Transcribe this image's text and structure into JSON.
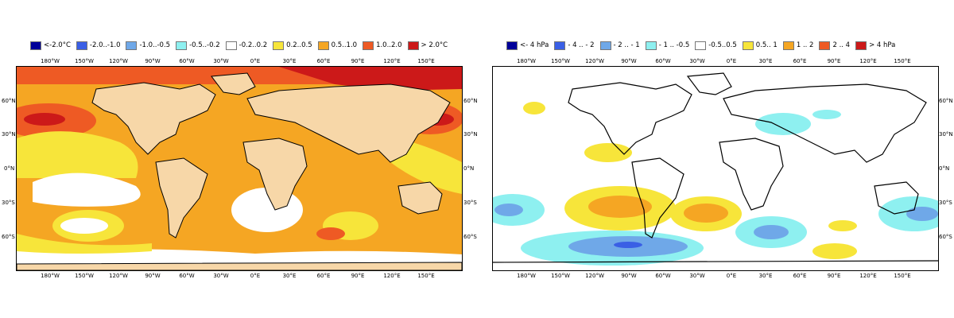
{
  "left_map": {
    "legend": [
      {
        "label": "<-2.0°C",
        "color": "#000099"
      },
      {
        "label": "-2.0..-1.0",
        "color": "#3a5fe5"
      },
      {
        "label": "-1.0..-0.5",
        "color": "#6fa8e8"
      },
      {
        "label": "-0.5..-0.2",
        "color": "#8ef0f0"
      },
      {
        "label": "-0.2..0.2",
        "color": "#ffffff"
      },
      {
        "label": "0.2..0.5",
        "color": "#f7e53a"
      },
      {
        "label": "0.5..1.0",
        "color": "#f5a623"
      },
      {
        "label": "1.0..2.0",
        "color": "#ee5a24"
      },
      {
        "label": "> 2.0°C",
        "color": "#cc1919"
      }
    ],
    "land_color": "#f7d7a8",
    "lon_ticks": [
      "180°W",
      "150°W",
      "120°W",
      "90°W",
      "60°W",
      "30°W",
      "0°E",
      "30°E",
      "60°E",
      "90°E",
      "120°E",
      "150°E"
    ],
    "lat_ticks_left": [
      "60°N",
      "30°N",
      "0°N",
      "30°S",
      "60°S"
    ],
    "lat_ticks_right": [
      "60°N",
      "30°N",
      "0°N",
      "30°S",
      "60°S"
    ]
  },
  "right_map": {
    "legend": [
      {
        "label": "<- 4 hPa",
        "color": "#000099"
      },
      {
        "label": "- 4 .. - 2",
        "color": "#3a5fe5"
      },
      {
        "label": "- 2 .. - 1",
        "color": "#6fa8e8"
      },
      {
        "label": "- 1 .. -0.5",
        "color": "#8ef0f0"
      },
      {
        "label": "-0.5..0.5",
        "color": "#ffffff"
      },
      {
        "label": "0.5.. 1",
        "color": "#f7e53a"
      },
      {
        "label": "1 .. 2",
        "color": "#f5a623"
      },
      {
        "label": "2 .. 4",
        "color": "#ee5a24"
      },
      {
        "label": ">  4 hPa",
        "color": "#cc1919"
      }
    ],
    "lon_ticks_top": [
      "180°W",
      "150°W",
      "120°W",
      "90°W",
      "60°W",
      "30°W",
      "0°E",
      "30°E",
      "60°E",
      "90°E",
      "120°E",
      "150°E"
    ],
    "lon_ticks_bottom": [
      "180°W",
      "150°W",
      "120°W",
      "90°W",
      "60°W",
      "30°W",
      "0°E",
      "30°E",
      "60°E",
      "90°E",
      "120°E",
      "150°E"
    ],
    "lat_ticks_right": [
      "60°N",
      "30°N",
      "0°N",
      "30°S",
      "60°S"
    ]
  }
}
